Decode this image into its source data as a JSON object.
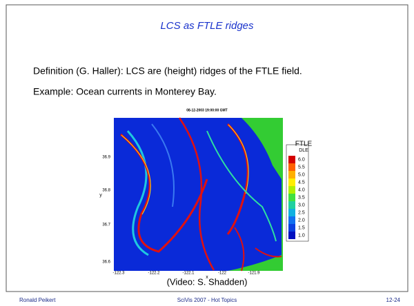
{
  "slide": {
    "title": "LCS as FTLE ridges",
    "lines": [
      "Definition (G. Haller): LCS are (height) ridges of the FTLE field.",
      "Example: Ocean currents in Monterey Bay."
    ],
    "figure": {
      "title": "08-12-2003 19:00:00 GMT",
      "xlabel": "x",
      "ylabel": "y",
      "xticks": [
        "-122.3",
        "-122.2",
        "-122.1",
        "-122",
        "-121.9"
      ],
      "yticks": [
        "36.9",
        "36.8",
        "36.7",
        "36.6"
      ],
      "colorbar_title": "FTLE",
      "colorbar_subtitle": "DLE",
      "colorbar_labels": [
        "6.0",
        "5.5",
        "5.0",
        "4.5",
        "4.0",
        "3.5",
        "3.0",
        "2.5",
        "2.0",
        "1.5",
        "1.0"
      ]
    },
    "caption": "(Video: S. Shadden)",
    "footer": {
      "left": "Ronald Peikert",
      "center": "SciVis 2007 - Hot Topics",
      "right": "12-24"
    }
  }
}
